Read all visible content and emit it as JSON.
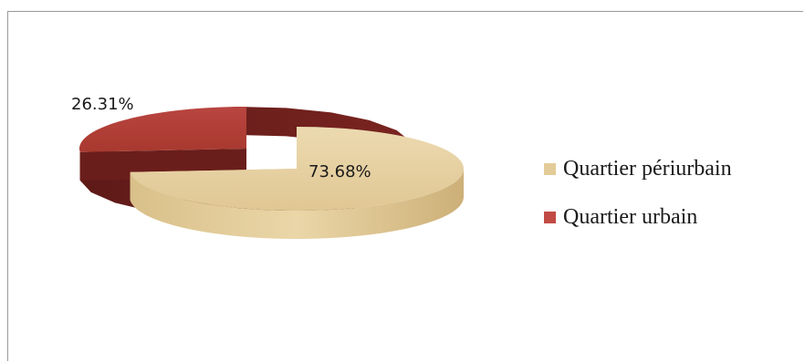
{
  "chart_data": {
    "type": "pie",
    "title": "",
    "categories": [
      "Quartier périurbain",
      "Quartier urbain"
    ],
    "values": [
      73.68,
      26.31
    ],
    "labels": [
      "73.68%",
      "26.31%"
    ],
    "exploded": true,
    "three_d": true,
    "legend_position": "right"
  },
  "legend": {
    "items": [
      {
        "label": "Quartier périurbain",
        "color": "#e3cc98"
      },
      {
        "label": "Quartier urbain",
        "color": "#c24a44"
      }
    ]
  },
  "colors": {
    "periurbain_top": "#e8d4a6",
    "periurbain_side": "#cfb37a",
    "urbain_top": "#b3403b",
    "urbain_side": "#6e1f1c"
  }
}
